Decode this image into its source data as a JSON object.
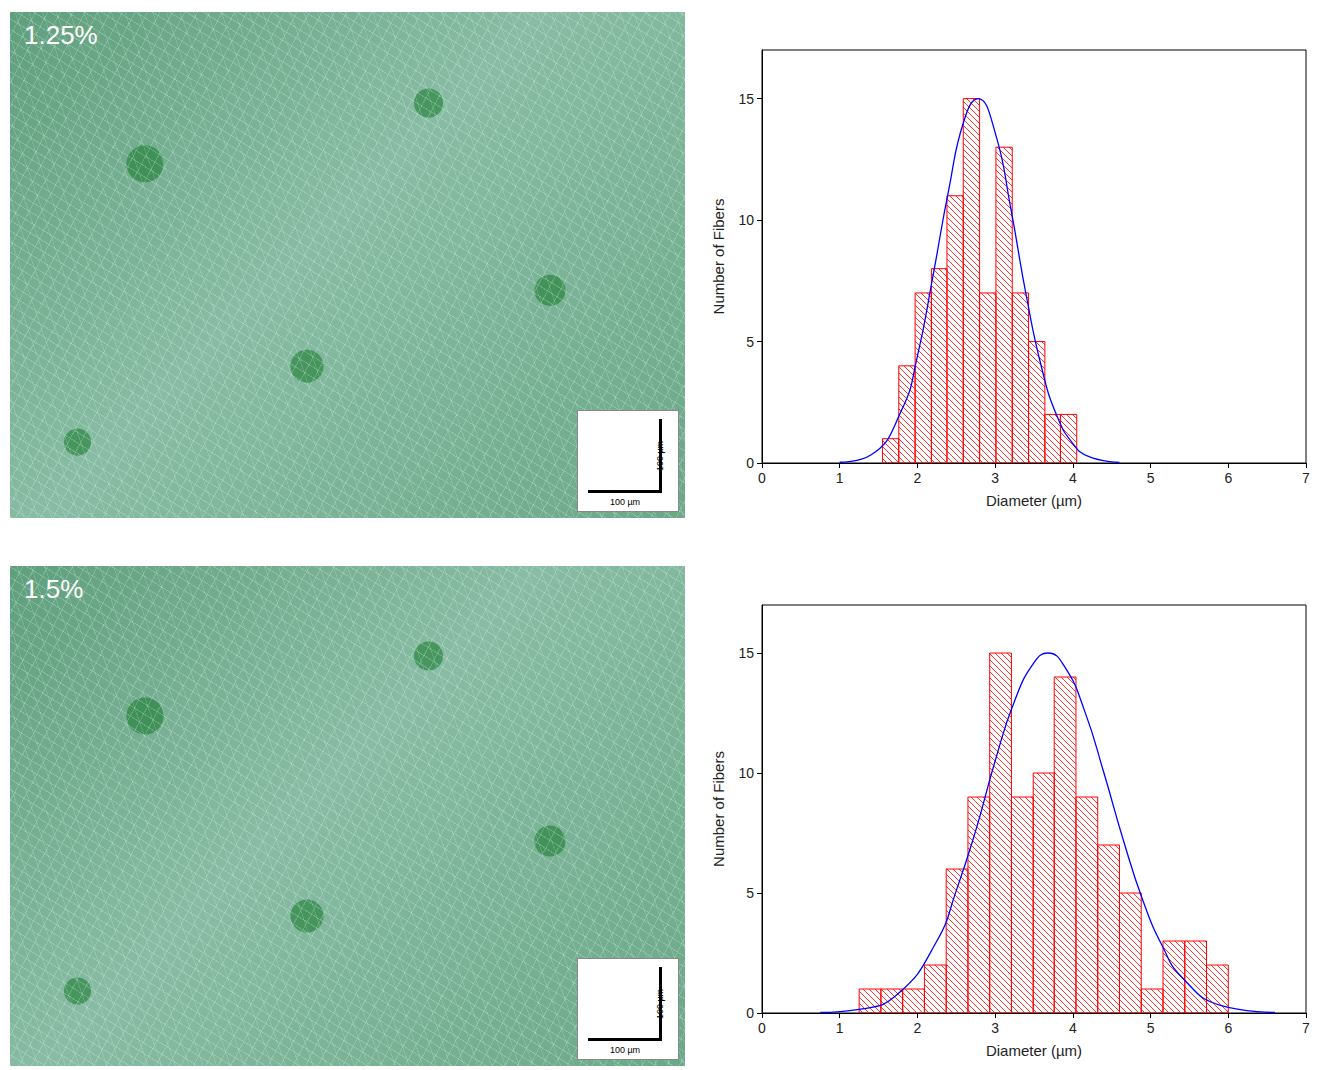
{
  "chart_data": [
    {
      "type": "histogram",
      "image": {
        "label": "1.25%",
        "scale_bar_labels": [
          "100 µm",
          "100 µm"
        ]
      },
      "xlabel": "Diameter (µm)",
      "ylabel": "Number of Fibers",
      "bins": [
        1.55,
        1.76,
        1.97,
        2.18,
        2.38,
        2.59,
        2.8,
        3.01,
        3.22,
        3.43,
        3.64,
        3.84,
        4.05
      ],
      "counts": [
        1,
        4,
        7,
        8,
        11,
        15,
        7,
        13,
        7,
        5,
        2,
        2
      ],
      "color": "#ff0000",
      "fit": {
        "color": "#0000ff",
        "x": [
          1.0,
          1.4,
          1.8,
          2.0,
          2.2,
          2.4,
          2.6,
          2.78,
          3.0,
          3.2,
          3.4,
          3.6,
          3.8,
          4.0,
          4.2,
          4.6
        ],
        "y": [
          0.03,
          0.33,
          2.2,
          4.4,
          7.7,
          11.2,
          14.1,
          15,
          13.6,
          10.5,
          6.9,
          3.9,
          1.9,
          0.8,
          0.27,
          0.02
        ]
      },
      "xlim": [
        0,
        7
      ],
      "xticks": [
        0,
        1,
        2,
        3,
        4,
        5,
        6,
        7
      ],
      "ylim": [
        0,
        17
      ],
      "yticks": [
        0,
        5,
        10,
        15
      ],
      "grid": false
    },
    {
      "type": "histogram",
      "image": {
        "label": "1.5%",
        "scale_bar_labels": [
          "100 µm",
          "100 µm"
        ]
      },
      "xlabel": "Diameter (µm)",
      "ylabel": "Number of Fibers",
      "bins": [
        1.25,
        1.53,
        1.81,
        2.09,
        2.37,
        2.65,
        2.93,
        3.21,
        3.49,
        3.76,
        4.04,
        4.32,
        4.6,
        4.88,
        5.16,
        5.44,
        5.72,
        6.0
      ],
      "counts": [
        1,
        1,
        1,
        2,
        6,
        9,
        15,
        9,
        10,
        14,
        9,
        7,
        5,
        1,
        3,
        3,
        2
      ],
      "color": "#ff0000",
      "fit": {
        "color": "#0000ff",
        "x": [
          0.75,
          1.25,
          1.75,
          2.25,
          2.5,
          2.75,
          3.0,
          3.25,
          3.5,
          3.68,
          3.9,
          4.15,
          4.4,
          4.65,
          4.9,
          5.15,
          5.4,
          5.9,
          6.6
        ],
        "y": [
          0.02,
          0.15,
          0.8,
          3.0,
          5.1,
          7.6,
          10.5,
          13.0,
          14.6,
          15,
          14.4,
          12.6,
          10.0,
          7.2,
          4.7,
          2.8,
          1.5,
          0.32,
          0.02
        ]
      },
      "xlim": [
        0,
        7
      ],
      "xticks": [
        0,
        1,
        2,
        3,
        4,
        5,
        6,
        7
      ],
      "ylim": [
        0,
        17
      ],
      "yticks": [
        0,
        5,
        10,
        15
      ],
      "grid": false
    }
  ]
}
